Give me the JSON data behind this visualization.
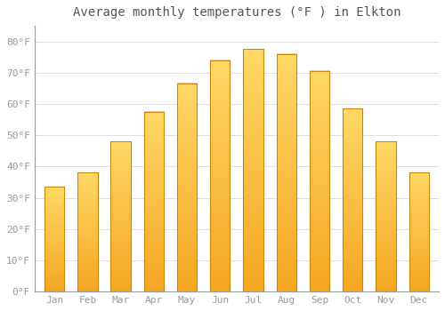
{
  "title": "Average monthly temperatures (°F ) in Elkton",
  "months": [
    "Jan",
    "Feb",
    "Mar",
    "Apr",
    "May",
    "Jun",
    "Jul",
    "Aug",
    "Sep",
    "Oct",
    "Nov",
    "Dec"
  ],
  "values": [
    33.5,
    38.0,
    48.0,
    57.5,
    66.5,
    74.0,
    77.5,
    76.0,
    70.5,
    58.5,
    48.0,
    38.0
  ],
  "bar_color_bottom": "#F5A623",
  "bar_color_top": "#FFD966",
  "bar_edge_color": "#C8860A",
  "background_color": "#FFFFFF",
  "plot_bg_color": "#FFFFFF",
  "grid_color": "#DDDDDD",
  "ytick_labels": [
    "0°F",
    "10°F",
    "20°F",
    "30°F",
    "40°F",
    "50°F",
    "60°F",
    "70°F",
    "80°F"
  ],
  "ytick_values": [
    0,
    10,
    20,
    30,
    40,
    50,
    60,
    70,
    80
  ],
  "ylim": [
    0,
    85
  ],
  "title_fontsize": 10,
  "tick_fontsize": 8,
  "tick_color": "#999999",
  "title_color": "#555555",
  "bar_width": 0.6
}
